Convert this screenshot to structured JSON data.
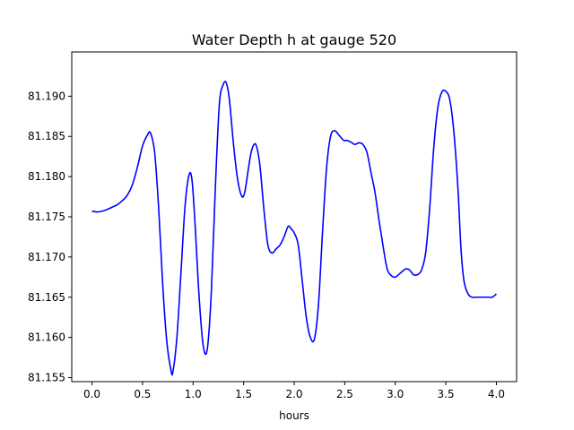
{
  "chart_data": {
    "type": "line",
    "title": "Water Depth h at gauge 520",
    "xlabel": "hours",
    "ylabel": "",
    "xlim": [
      -0.2,
      4.2
    ],
    "ylim": [
      81.1545,
      81.1955
    ],
    "xticks": [
      {
        "value": 0.0,
        "label": "0.0"
      },
      {
        "value": 0.5,
        "label": "0.5"
      },
      {
        "value": 1.0,
        "label": "1.0"
      },
      {
        "value": 1.5,
        "label": "1.5"
      },
      {
        "value": 2.0,
        "label": "2.0"
      },
      {
        "value": 2.5,
        "label": "2.5"
      },
      {
        "value": 3.0,
        "label": "3.0"
      },
      {
        "value": 3.5,
        "label": "3.5"
      },
      {
        "value": 4.0,
        "label": "4.0"
      }
    ],
    "yticks": [
      {
        "value": 81.155,
        "label": "81.155"
      },
      {
        "value": 81.16,
        "label": "81.160"
      },
      {
        "value": 81.165,
        "label": "81.165"
      },
      {
        "value": 81.17,
        "label": "81.170"
      },
      {
        "value": 81.175,
        "label": "81.175"
      },
      {
        "value": 81.18,
        "label": "81.180"
      },
      {
        "value": 81.185,
        "label": "81.185"
      },
      {
        "value": 81.19,
        "label": "81.190"
      }
    ],
    "grid": false,
    "legend": "none",
    "colors": {
      "line": "#0000ff",
      "frame": "#000000"
    },
    "series": [
      {
        "x": [
          0.0,
          0.05,
          0.1,
          0.15,
          0.2,
          0.25,
          0.3,
          0.35,
          0.4,
          0.45,
          0.5,
          0.55,
          0.58,
          0.62,
          0.66,
          0.7,
          0.74,
          0.78,
          0.8,
          0.84,
          0.88,
          0.92,
          0.96,
          0.99,
          1.02,
          1.06,
          1.1,
          1.14,
          1.18,
          1.22,
          1.26,
          1.3,
          1.33,
          1.36,
          1.4,
          1.44,
          1.48,
          1.51,
          1.55,
          1.58,
          1.62,
          1.66,
          1.7,
          1.74,
          1.78,
          1.82,
          1.86,
          1.9,
          1.94,
          1.97,
          2.0,
          2.04,
          2.08,
          2.12,
          2.16,
          2.2,
          2.24,
          2.28,
          2.32,
          2.36,
          2.4,
          2.44,
          2.49,
          2.52,
          2.56,
          2.6,
          2.64,
          2.68,
          2.72,
          2.76,
          2.8,
          2.84,
          2.88,
          2.92,
          2.96,
          3.0,
          3.05,
          3.1,
          3.14,
          3.18,
          3.22,
          3.26,
          3.3,
          3.34,
          3.38,
          3.42,
          3.46,
          3.5,
          3.54,
          3.58,
          3.62,
          3.65,
          3.68,
          3.72,
          3.76,
          3.8,
          3.84,
          3.88,
          3.92,
          3.96,
          4.0
        ],
        "y": [
          81.1757,
          81.1756,
          81.1757,
          81.1759,
          81.1762,
          81.1765,
          81.177,
          81.1777,
          81.179,
          81.1812,
          81.1838,
          81.1852,
          81.1854,
          81.183,
          81.176,
          81.1665,
          81.1595,
          81.156,
          81.1557,
          81.16,
          81.168,
          81.1762,
          81.1802,
          81.1795,
          81.174,
          81.165,
          81.159,
          81.1585,
          81.1655,
          81.1785,
          81.189,
          81.1915,
          81.1916,
          81.1895,
          81.184,
          81.1797,
          81.1776,
          81.178,
          81.1812,
          81.1833,
          81.184,
          81.1815,
          81.176,
          81.1715,
          81.1705,
          81.171,
          81.1715,
          81.1725,
          81.1738,
          81.1735,
          81.173,
          81.1715,
          81.167,
          81.1625,
          81.16,
          81.1598,
          81.164,
          81.173,
          81.181,
          81.185,
          81.1857,
          81.1852,
          81.1845,
          81.1845,
          81.1843,
          81.184,
          81.1842,
          81.184,
          81.183,
          81.1805,
          81.178,
          81.1745,
          81.1713,
          81.1685,
          81.1677,
          81.1675,
          81.168,
          81.1685,
          81.1684,
          81.1678,
          81.1678,
          81.1684,
          81.1705,
          81.176,
          81.1835,
          81.1885,
          81.1905,
          81.1906,
          81.1895,
          81.1855,
          81.1785,
          81.171,
          81.167,
          81.1654,
          81.165,
          81.165,
          81.165,
          81.165,
          81.165,
          81.165,
          81.1654
        ]
      }
    ]
  }
}
